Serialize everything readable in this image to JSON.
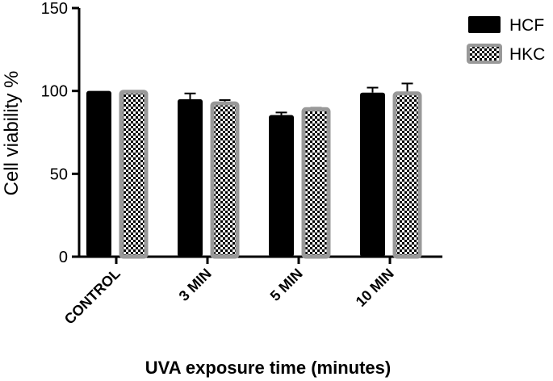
{
  "chart_data": {
    "type": "bar",
    "categories": [
      "CONTROL",
      "3 MIN",
      "5 MIN",
      "10 MIN"
    ],
    "series": [
      {
        "name": "HCF",
        "values": [
          100,
          95,
          85.5,
          99
        ],
        "errors": [
          0,
          3.5,
          1.5,
          3
        ],
        "fill": "solid",
        "color": "#000000"
      },
      {
        "name": "HKC",
        "values": [
          99.5,
          92.5,
          89,
          98.5
        ],
        "errors": [
          0,
          2,
          0.8,
          6
        ],
        "fill": "checker",
        "color": "#000000",
        "border_color": "#999999"
      }
    ],
    "xlabel": "UVA exposure time (minutes)",
    "ylabel": "Cell viability %",
    "ylim": [
      0,
      150
    ],
    "yticks": [
      "0",
      "50",
      "100",
      "150"
    ],
    "grid": false,
    "legend": "top-right"
  }
}
